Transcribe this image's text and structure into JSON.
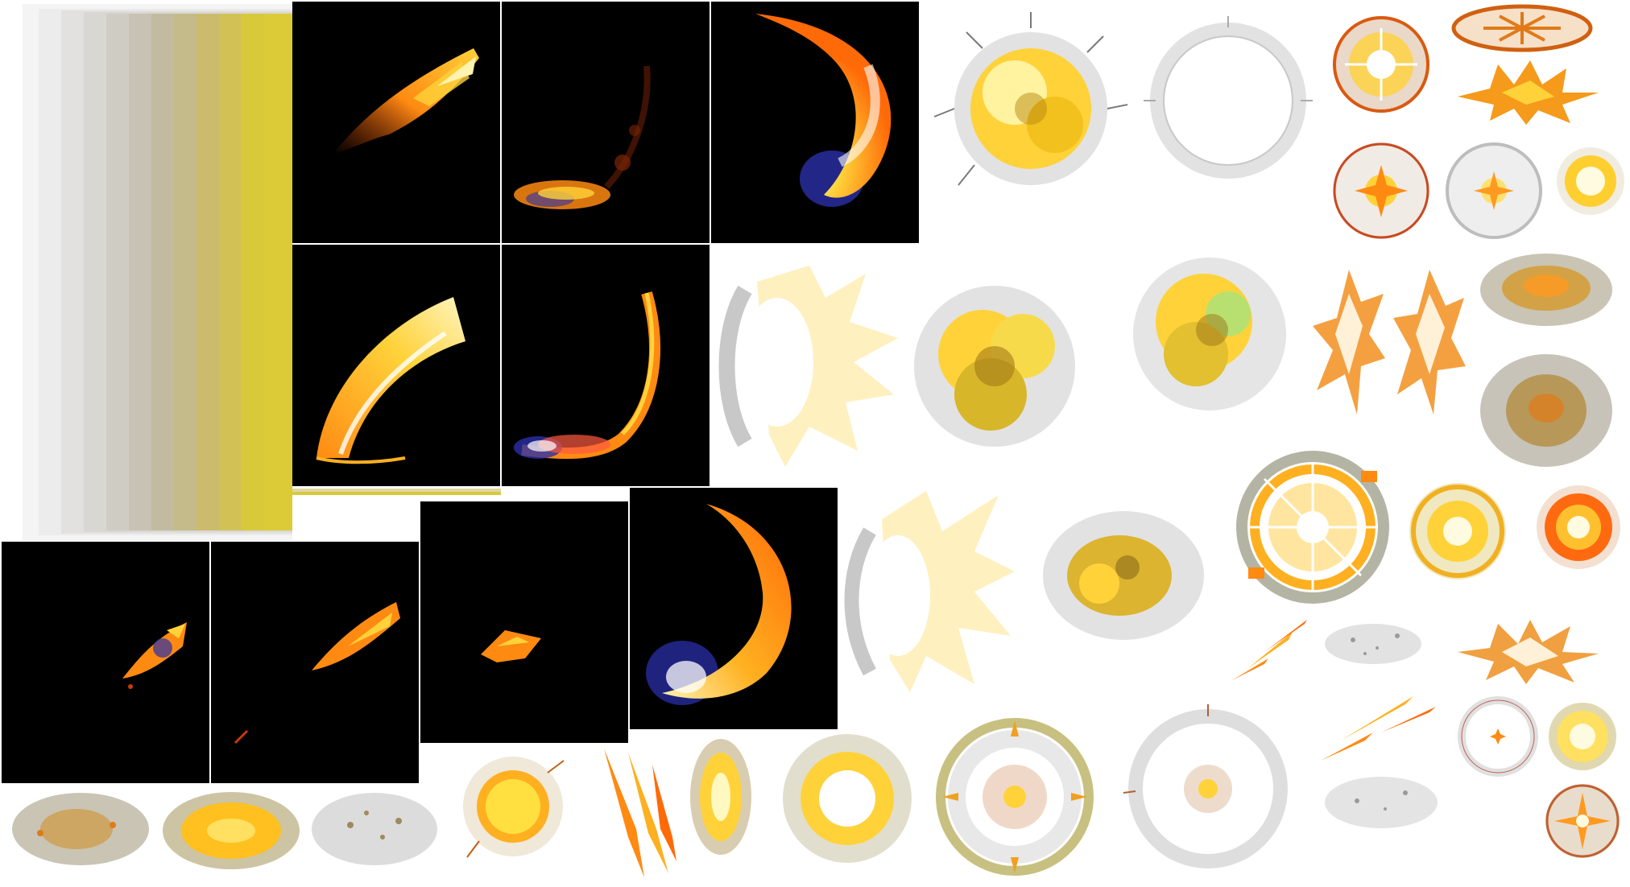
{
  "sheet": {
    "colors": {
      "background": "#ffffff",
      "frame_bg": "#000000",
      "fire_core": "#fffbe0",
      "fire_hot": "#ffd23a",
      "fire_mid": "#ff8a12",
      "fire_deep": "#c83a06",
      "smoke": "#8a8678",
      "smoke_light": "#cfcfcf",
      "ember_blue": "#2a2fa8",
      "strip_yellow": "#d8c93a"
    },
    "frames": [
      {
        "name": "slash-frame-1",
        "effect": "flame-streak"
      },
      {
        "name": "slash-frame-2",
        "effect": "ember-sweep"
      },
      {
        "name": "slash-frame-3",
        "effect": "flame-crescent"
      },
      {
        "name": "slash-frame-4",
        "effect": "flame-arc"
      },
      {
        "name": "slash-frame-5",
        "effect": "ember-hook"
      },
      {
        "name": "slash-frame-6",
        "effect": "small-spark"
      },
      {
        "name": "slash-frame-7",
        "effect": "flame-streak-small"
      },
      {
        "name": "slash-frame-8",
        "effect": "fragment"
      },
      {
        "name": "slash-frame-9",
        "effect": "flame-crescent-large"
      }
    ],
    "sprites": [
      "explosion-cloud",
      "shockwave-ring-grey",
      "orange-ring-flash",
      "rune-ellipse",
      "spiky-burst",
      "ring-flash-red",
      "ring-flash-grey",
      "glow-orb",
      "blast-fan",
      "smoke-explosion",
      "smoke-explosion-2",
      "crystal-shard",
      "crystal-shard-2",
      "smoke-puff",
      "smoke-puff-2",
      "blast-fan-2",
      "smoke-explosion-3",
      "segmented-ring-flash",
      "radial-sun",
      "fire-orb",
      "flame-darts",
      "dust-particles",
      "spiky-burst-2",
      "smoke-pile",
      "ember-pile",
      "dust-pile",
      "sun-orb",
      "claw-slash",
      "fire-ellipse",
      "fire-cloud",
      "yellow-ring-burst",
      "grey-ring-burst",
      "flame-darts-2",
      "white-ring",
      "spiky-sun",
      "dust-particles-2",
      "star-flash"
    ]
  }
}
